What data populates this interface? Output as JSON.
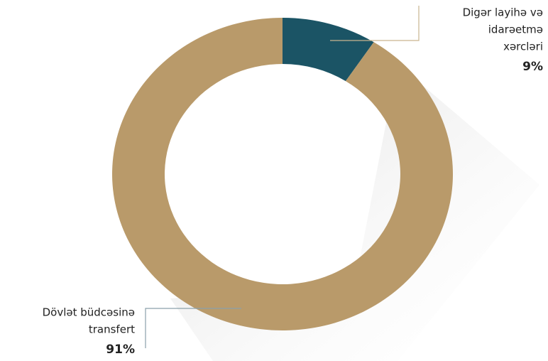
{
  "chart_data": {
    "type": "donut",
    "categories": [
      [
        "Digər layihə və",
        "idarəetmə",
        "xərcləri"
      ],
      [
        "Dövlət büdcəsinə",
        "transfert"
      ]
    ],
    "values": [
      9,
      91
    ],
    "value_labels": [
      "9%",
      "91%"
    ],
    "colors": [
      "#1b5465",
      "#b99a6a"
    ]
  }
}
